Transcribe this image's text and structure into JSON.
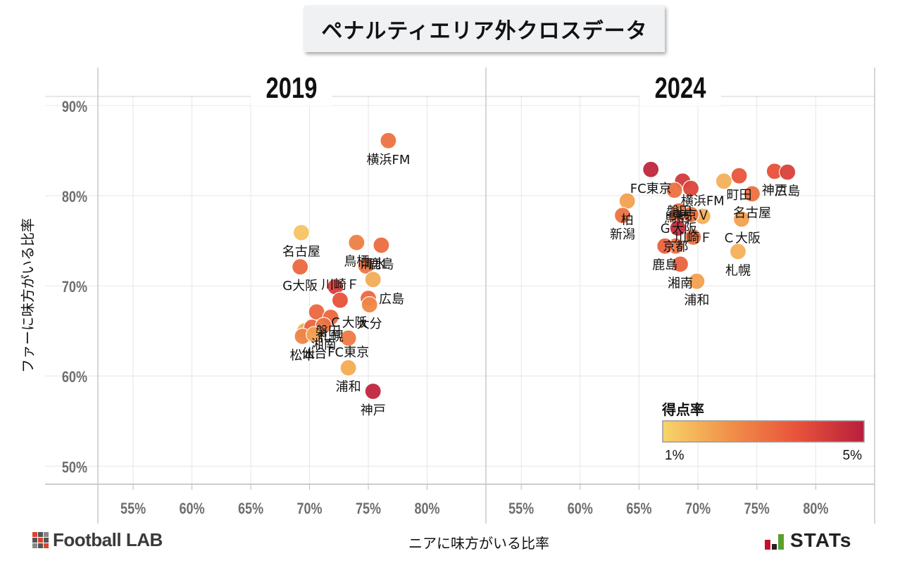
{
  "title": "ペナルティエリア外クロスデータ",
  "y_axis_label": "ファーに味方がいる比率",
  "x_axis_label": "ニアに味方がいる比率",
  "brand_left": "Football LAB",
  "brand_right": "STATs",
  "chart_data": {
    "type": "scatter",
    "y_ticks": [
      "90%",
      "80%",
      "70%",
      "60%",
      "50%"
    ],
    "x_ticks": [
      "55%",
      "60%",
      "65%",
      "70%",
      "75%",
      "80%"
    ],
    "xlim": [
      52,
      85
    ],
    "ylim": [
      48,
      91
    ],
    "legend": {
      "title": "得点率",
      "min_label": "1%",
      "max_label": "5%",
      "min": 1,
      "max": 5,
      "colors": [
        "#f7d56a",
        "#f19049",
        "#e8533b",
        "#b81e3c"
      ],
      "placement": "bottom-right"
    },
    "panels": [
      {
        "label": "2019",
        "points": [
          {
            "name": "横浜FM",
            "x": 76.7,
            "y": 86.1,
            "rate": 3.0,
            "label_pos": "below"
          },
          {
            "name": "名古屋",
            "x": 69.3,
            "y": 75.9,
            "rate": 1.3,
            "label_pos": "below"
          },
          {
            "name": "鳥栖",
            "x": 74.0,
            "y": 74.8,
            "rate": 2.7,
            "label_pos": "below"
          },
          {
            "name": "鹿島",
            "x": 76.1,
            "y": 74.5,
            "rate": 3.1,
            "label_pos": "below"
          },
          {
            "name": "G大阪",
            "x": 69.2,
            "y": 72.1,
            "rate": 3.2,
            "label_pos": "below"
          },
          {
            "name": "",
            "x": 74.8,
            "y": 72.2,
            "rate": 2.9,
            "label_pos": "none"
          },
          {
            "name": "清水",
            "x": 75.4,
            "y": 70.7,
            "rate": 1.8,
            "label_pos": "above"
          },
          {
            "name": "",
            "x": 72.2,
            "y": 69.9,
            "rate": 4.2,
            "label_pos": "none"
          },
          {
            "name": "広島",
            "x": 75.0,
            "y": 68.6,
            "rate": 3.2,
            "label_pos": "right"
          },
          {
            "name": "川崎Ｆ",
            "x": 72.6,
            "y": 68.4,
            "rate": 3.7,
            "label_pos": "above"
          },
          {
            "name": "",
            "x": 70.6,
            "y": 67.1,
            "rate": 3.2,
            "label_pos": "none"
          },
          {
            "name": "大分",
            "x": 75.1,
            "y": 67.9,
            "rate": 2.5,
            "label_pos": "below"
          },
          {
            "name": "札幌",
            "x": 71.8,
            "y": 66.5,
            "rate": 3.2,
            "label_pos": "below"
          },
          {
            "name": "磐田",
            "x": 69.6,
            "y": 65.0,
            "rate": 1.8,
            "label_pos": "right"
          },
          {
            "name": "",
            "x": 70.2,
            "y": 65.4,
            "rate": 3.3,
            "label_pos": "none"
          },
          {
            "name": "湘南",
            "x": 71.2,
            "y": 65.6,
            "rate": 3.0,
            "label_pos": "below"
          },
          {
            "name": "Ｃ大阪",
            "x": 73.3,
            "y": 64.2,
            "rate": 2.8,
            "label_pos": "above"
          },
          {
            "name": "松本",
            "x": 69.4,
            "y": 64.4,
            "rate": 2.6,
            "label_pos": "below"
          },
          {
            "name": "仙台",
            "x": 70.4,
            "y": 64.6,
            "rate": 2.0,
            "label_pos": "below"
          },
          {
            "name": "FC東京",
            "x": 73.3,
            "y": 60.9,
            "rate": 1.7,
            "label_pos": "above"
          },
          {
            "name": "浦和",
            "x": 73.3,
            "y": 60.9,
            "rate": 1.7,
            "label_pos": "below"
          },
          {
            "name": "神戸",
            "x": 75.4,
            "y": 58.3,
            "rate": 4.8,
            "label_pos": "below"
          }
        ]
      },
      {
        "label": "2024",
        "points": [
          {
            "name": "FC東京",
            "x": 66.0,
            "y": 82.9,
            "rate": 4.8,
            "label_pos": "below"
          },
          {
            "name": "",
            "x": 68.7,
            "y": 81.6,
            "rate": 4.3,
            "label_pos": "none"
          },
          {
            "name": "",
            "x": 69.4,
            "y": 80.8,
            "rate": 4.0,
            "label_pos": "none"
          },
          {
            "name": "",
            "x": 68.0,
            "y": 80.6,
            "rate": 3.0,
            "label_pos": "none"
          },
          {
            "name": "",
            "x": 72.2,
            "y": 81.6,
            "rate": 1.7,
            "label_pos": "none"
          },
          {
            "name": "町田",
            "x": 73.5,
            "y": 82.2,
            "rate": 3.6,
            "label_pos": "below"
          },
          {
            "name": "神戸",
            "x": 76.5,
            "y": 82.7,
            "rate": 3.7,
            "label_pos": "below"
          },
          {
            "name": "広島",
            "x": 77.6,
            "y": 82.6,
            "rate": 4.1,
            "label_pos": "below"
          },
          {
            "name": "名古屋",
            "x": 74.6,
            "y": 80.2,
            "rate": 3.0,
            "label_pos": "below"
          },
          {
            "name": "柏",
            "x": 64.0,
            "y": 79.4,
            "rate": 2.0,
            "label_pos": "below"
          },
          {
            "name": "新潟",
            "x": 63.6,
            "y": 77.8,
            "rate": 3.0,
            "label_pos": "below"
          },
          {
            "name": "横浜FM",
            "x": 70.4,
            "y": 77.7,
            "rate": 1.7,
            "label_pos": "above"
          },
          {
            "name": "磐田",
            "x": 68.4,
            "y": 78.3,
            "rate": 3.0,
            "label_pos": "none"
          },
          {
            "name": "鳥栖",
            "x": 68.2,
            "y": 77.6,
            "rate": 3.0,
            "label_pos": "none"
          },
          {
            "name": "東京Ｖ",
            "x": 69.4,
            "y": 77.9,
            "rate": 3.0,
            "label_pos": "none"
          },
          {
            "name": "Ｃ大阪",
            "x": 73.7,
            "y": 77.4,
            "rate": 2.0,
            "label_pos": "below"
          },
          {
            "name": "Ｇ大阪",
            "x": 68.3,
            "y": 76.4,
            "rate": 4.6,
            "label_pos": "none"
          },
          {
            "name": "川崎Ｆ",
            "x": 69.6,
            "y": 75.4,
            "rate": 3.0,
            "label_pos": "none"
          },
          {
            "name": "京都",
            "x": 68.1,
            "y": 74.4,
            "rate": 3.0,
            "label_pos": "none"
          },
          {
            "name": "鹿島",
            "x": 67.2,
            "y": 74.4,
            "rate": 3.3,
            "label_pos": "below"
          },
          {
            "name": "札幌",
            "x": 73.4,
            "y": 73.8,
            "rate": 1.7,
            "label_pos": "below"
          },
          {
            "name": "湘南",
            "x": 68.5,
            "y": 72.4,
            "rate": 3.3,
            "label_pos": "below"
          },
          {
            "name": "浦和",
            "x": 69.9,
            "y": 70.5,
            "rate": 2.0,
            "label_pos": "below"
          }
        ]
      }
    ]
  }
}
